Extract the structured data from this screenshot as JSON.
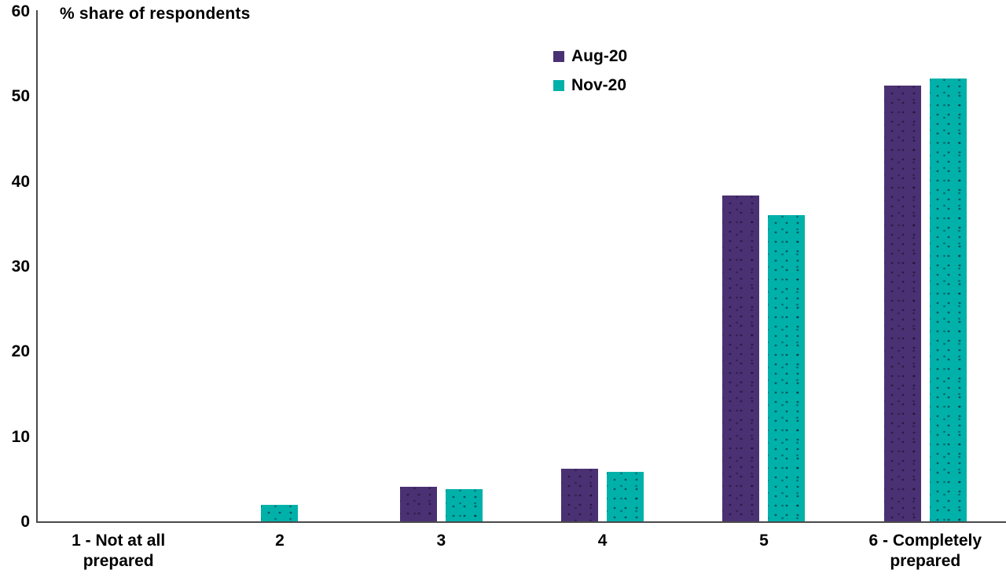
{
  "chart_data": {
    "type": "bar",
    "title": "% share of respondents",
    "categories": [
      "1 - Not at all\nprepared",
      "2",
      "3",
      "4",
      "5",
      "6 - Completely\nprepared"
    ],
    "series": [
      {
        "name": "Aug-20",
        "color": "#4a3173",
        "values": [
          0,
          0,
          4.1,
          6.2,
          38.3,
          51.2
        ]
      },
      {
        "name": "Nov-20",
        "color": "#00b1a9",
        "values": [
          0,
          1.9,
          3.8,
          5.8,
          36.0,
          52.1
        ]
      }
    ],
    "xlabel": "",
    "ylabel": "% share of respondents",
    "ylim": [
      0,
      60
    ],
    "yticks": [
      0,
      10,
      20,
      30,
      40,
      50,
      60
    ],
    "grid": false,
    "legend_position": "top-center",
    "axis_color": "#4a4a4a",
    "background_color": "#ffffff"
  }
}
